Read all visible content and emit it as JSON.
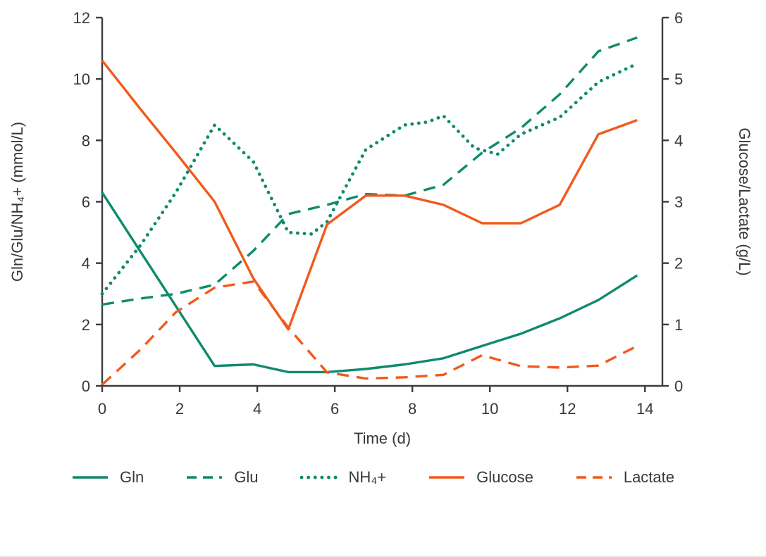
{
  "colors": {
    "teal": "#0f8a6d",
    "orange": "#f2591b",
    "axis": "#3a3d40",
    "text": "#34383c",
    "background": "#ffffff",
    "divider": "#e9eaec"
  },
  "chart_data": {
    "type": "line",
    "title": "",
    "grid": false,
    "legend_position": "bottom",
    "x_axis": {
      "label": "Time (d)",
      "min": 0,
      "max": 14.45,
      "ticks": [
        0,
        2,
        4,
        6,
        8,
        10,
        12,
        14
      ]
    },
    "left_axis": {
      "label": "Gln/Glu/NH₄+ (mmol/L)",
      "min": 0,
      "max": 12,
      "ticks": [
        0,
        2,
        4,
        6,
        8,
        10,
        12
      ]
    },
    "right_axis": {
      "label": "Glucose/Lactate (g/L)",
      "min": 0,
      "max": 6,
      "ticks": [
        0,
        1,
        2,
        3,
        4,
        5,
        6
      ]
    },
    "series": [
      {
        "name": "Gln",
        "axis": "left",
        "style": "solid",
        "color": "teal",
        "x": [
          0,
          1,
          1.9,
          2.9,
          3.9,
          4.8,
          5.8,
          6.8,
          7.8,
          8.8,
          9.8,
          10.8,
          11.8,
          12.8,
          13.8
        ],
        "y": [
          6.3,
          4.35,
          2.6,
          0.65,
          0.7,
          0.45,
          0.45,
          0.55,
          0.7,
          0.9,
          1.3,
          1.7,
          2.2,
          2.8,
          3.6
        ]
      },
      {
        "name": "Glu",
        "axis": "left",
        "style": "dashed",
        "color": "teal",
        "x": [
          0,
          1,
          1.9,
          2.9,
          3.9,
          4.8,
          5.8,
          6.8,
          7.8,
          8.8,
          9.8,
          10.8,
          11.8,
          12.8,
          13.8
        ],
        "y": [
          2.65,
          2.85,
          3.0,
          3.3,
          4.4,
          5.6,
          5.9,
          6.25,
          6.2,
          6.55,
          7.6,
          8.4,
          9.5,
          10.9,
          11.35
        ]
      },
      {
        "name": "NH₄+",
        "axis": "left",
        "style": "dotted",
        "color": "teal",
        "x": [
          0,
          1,
          1.9,
          2.9,
          3.9,
          4.8,
          5.4,
          5.8,
          6.8,
          7.8,
          8.4,
          8.8,
          9.6,
          10.2,
          10.8,
          11.8,
          12.8,
          13.8
        ],
        "y": [
          3.0,
          4.6,
          6.3,
          8.5,
          7.3,
          5.0,
          4.95,
          5.35,
          7.7,
          8.5,
          8.6,
          8.8,
          7.75,
          7.55,
          8.2,
          8.75,
          9.9,
          10.5
        ]
      },
      {
        "name": "Glucose",
        "axis": "right",
        "style": "solid",
        "color": "orange",
        "x": [
          0,
          1,
          1.9,
          2.9,
          3.9,
          4.8,
          5.8,
          6.8,
          7.8,
          8.8,
          9.8,
          10.8,
          11.8,
          12.8,
          13.8
        ],
        "y": [
          5.3,
          4.5,
          3.8,
          3.0,
          1.75,
          0.92,
          2.63,
          3.1,
          3.1,
          2.95,
          2.65,
          2.65,
          2.95,
          4.1,
          4.33
        ]
      },
      {
        "name": "Lactate",
        "axis": "right",
        "style": "dashed",
        "color": "orange",
        "x": [
          0,
          1,
          1.9,
          2.9,
          3.9,
          4.8,
          5.8,
          6.8,
          7.8,
          8.8,
          9.8,
          10.8,
          11.8,
          12.8,
          13.8
        ],
        "y": [
          0.02,
          0.6,
          1.2,
          1.6,
          1.7,
          0.95,
          0.22,
          0.12,
          0.14,
          0.18,
          0.5,
          0.32,
          0.3,
          0.33,
          0.65
        ]
      }
    ]
  }
}
